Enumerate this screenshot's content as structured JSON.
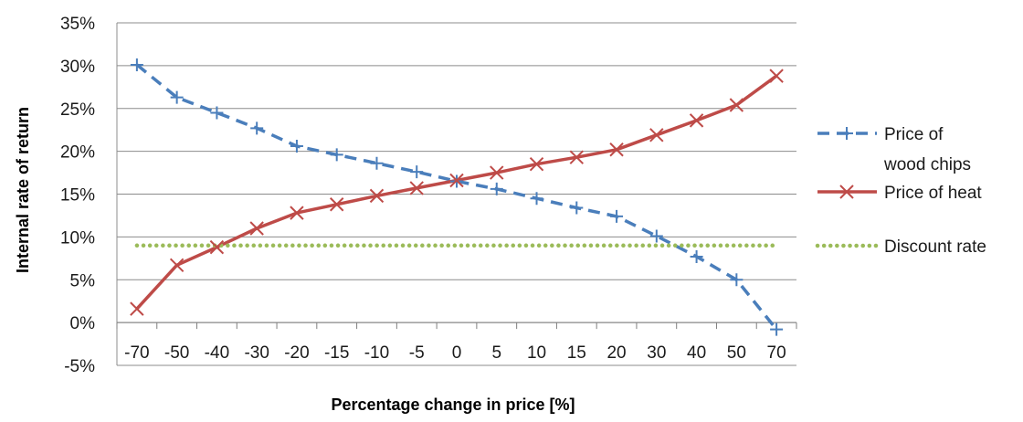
{
  "chart_data": {
    "type": "line",
    "title": "",
    "xlabel": "Percentage change in price [%]",
    "ylabel": "Internal rate of return",
    "categories": [
      "-70",
      "-50",
      "-40",
      "-30",
      "-20",
      "-15",
      "-10",
      "-5",
      "0",
      "5",
      "10",
      "15",
      "20",
      "30",
      "40",
      "50",
      "70"
    ],
    "ylim": [
      -5,
      35
    ],
    "yticks": [
      -5,
      0,
      5,
      10,
      15,
      20,
      25,
      30,
      35
    ],
    "ytick_labels": [
      "-5%",
      "0%",
      "5%",
      "10%",
      "15%",
      "20%",
      "25%",
      "30%",
      "35%"
    ],
    "grid": true,
    "legend_position": "right",
    "series": [
      {
        "name": "Price of wood chips",
        "legend_lines": [
          "Price of",
          "wood chips"
        ],
        "color": "#4A7EBB",
        "style": "dashed",
        "marker": "plus",
        "values": [
          30.1,
          26.3,
          24.5,
          22.7,
          20.6,
          19.6,
          18.6,
          17.6,
          16.5,
          15.6,
          14.5,
          13.4,
          12.4,
          10.1,
          7.7,
          5.0,
          -0.8
        ]
      },
      {
        "name": "Price of heat",
        "legend_lines": [
          "Price of heat"
        ],
        "color": "#BE4B48",
        "style": "solid",
        "marker": "x",
        "values": [
          1.6,
          6.7,
          8.8,
          11.0,
          12.8,
          13.8,
          14.8,
          15.7,
          16.6,
          17.5,
          18.5,
          19.3,
          20.2,
          21.9,
          23.6,
          25.4,
          28.8
        ]
      },
      {
        "name": "Discount rate",
        "legend_lines": [
          "Discount rate"
        ],
        "color": "#9BBB59",
        "style": "dotted",
        "marker": "none",
        "values": [
          9,
          9,
          9,
          9,
          9,
          9,
          9,
          9,
          9,
          9,
          9,
          9,
          9,
          9,
          9,
          9,
          9
        ]
      }
    ]
  }
}
